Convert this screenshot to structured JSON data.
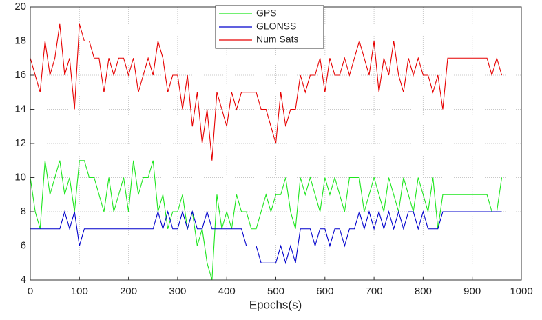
{
  "chart_data": {
    "type": "line",
    "xlabel": "Epochs(s)",
    "x": [
      0,
      10,
      20,
      30,
      40,
      50,
      60,
      70,
      80,
      90,
      100,
      110,
      120,
      130,
      140,
      150,
      160,
      170,
      180,
      190,
      200,
      210,
      220,
      230,
      240,
      250,
      260,
      270,
      280,
      290,
      300,
      310,
      320,
      330,
      340,
      350,
      360,
      370,
      380,
      390,
      400,
      410,
      420,
      430,
      440,
      450,
      460,
      470,
      480,
      490,
      500,
      510,
      520,
      530,
      540,
      550,
      560,
      570,
      580,
      590,
      600,
      610,
      620,
      630,
      640,
      650,
      660,
      670,
      680,
      690,
      700,
      710,
      720,
      730,
      740,
      750,
      760,
      770,
      780,
      790,
      800,
      810,
      820,
      830,
      840,
      850,
      860,
      870,
      880,
      890,
      900,
      910,
      920,
      930,
      940,
      950,
      960
    ],
    "series": [
      {
        "name": "GPS",
        "color": "#1ee61e",
        "values": [
          10,
          8,
          7,
          11,
          9,
          10,
          11,
          9,
          10,
          8,
          11,
          11,
          10,
          10,
          9,
          8,
          10,
          8,
          9,
          10,
          8,
          11,
          9,
          10,
          10,
          11,
          8,
          9,
          7,
          8,
          8,
          9,
          7,
          8,
          6,
          7,
          5,
          4,
          9,
          7,
          8,
          7,
          9,
          8,
          8,
          7,
          7,
          8,
          9,
          8,
          9,
          9,
          10,
          8,
          7,
          10,
          9,
          10,
          9,
          8,
          10,
          9,
          10,
          9,
          8,
          10,
          10,
          10,
          8,
          9,
          10,
          9,
          8,
          10,
          9,
          8,
          10,
          9,
          8,
          10,
          9,
          8,
          10,
          7,
          9,
          9,
          9,
          9,
          9,
          9,
          9,
          9,
          9,
          9,
          8,
          8,
          10
        ]
      },
      {
        "name": "GLONSS",
        "color": "#0000cc",
        "values": [
          7,
          7,
          7,
          7,
          7,
          7,
          7,
          8,
          7,
          8,
          6,
          7,
          7,
          7,
          7,
          7,
          7,
          7,
          7,
          7,
          7,
          7,
          7,
          7,
          7,
          7,
          8,
          7,
          8,
          7,
          7,
          8,
          7,
          8,
          7,
          7,
          8,
          7,
          7,
          7,
          7,
          7,
          7,
          7,
          6,
          6,
          6,
          5,
          5,
          5,
          5,
          6,
          5,
          6,
          5,
          7,
          7,
          7,
          6,
          7,
          7,
          6,
          7,
          7,
          6,
          7,
          7,
          8,
          7,
          8,
          7,
          8,
          7,
          8,
          7,
          8,
          7,
          8,
          8,
          7,
          8,
          7,
          7,
          7,
          8,
          8,
          8,
          8,
          8,
          8,
          8,
          8,
          8,
          8,
          8,
          8,
          8
        ]
      },
      {
        "name": "Num Sats",
        "color": "#e60000",
        "values": [
          17,
          16,
          15,
          18,
          16,
          17,
          19,
          16,
          17,
          14,
          19,
          18,
          18,
          17,
          17,
          15,
          17,
          16,
          17,
          17,
          16,
          17,
          15,
          16,
          17,
          16,
          18,
          17,
          15,
          16,
          16,
          14,
          16,
          13,
          15,
          12,
          14,
          11,
          15,
          14,
          13,
          15,
          14,
          15,
          15,
          15,
          15,
          14,
          14,
          13,
          12,
          15,
          13,
          14,
          14,
          16,
          15,
          16,
          16,
          17,
          15,
          17,
          16,
          16,
          17,
          16,
          17,
          18,
          17,
          16,
          18,
          15,
          17,
          16,
          18,
          16,
          15,
          17,
          16,
          17,
          16,
          16,
          15,
          16,
          14,
          17,
          17,
          17,
          17,
          17,
          17,
          17,
          17,
          17,
          16,
          17,
          16
        ]
      }
    ],
    "xlim": [
      0,
      1000
    ],
    "xticks": [
      0,
      100,
      200,
      300,
      400,
      500,
      600,
      700,
      800,
      900,
      1000
    ],
    "ylim": [
      4,
      20
    ],
    "yticks": [
      4,
      6,
      8,
      10,
      12,
      14,
      16,
      18,
      20
    ],
    "grid": true
  }
}
